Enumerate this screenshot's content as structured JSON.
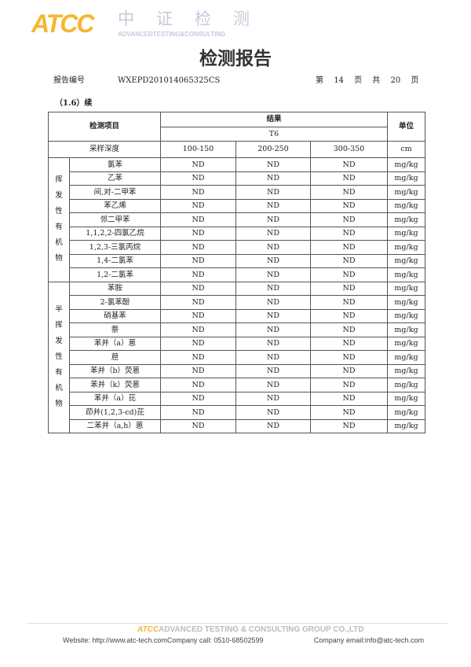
{
  "header": {
    "logo": "ATCC",
    "logo_cn": "中证检测",
    "logo_en": "ADVANCEDTESTING&CONSULTING",
    "title": "检测报告",
    "report_no_label": "报告编号",
    "report_no": "WXEPD201014065325CS",
    "page_prefix": "第",
    "page": "14",
    "page_mid": "页 共",
    "total": "20",
    "page_suffix": "页"
  },
  "section": "（1.6）续",
  "table": {
    "item_header": "检测项目",
    "result_header": "结果",
    "sample": "T6",
    "unit_header": "单位",
    "depth_label": "采样深度",
    "depths": [
      "100-150",
      "200-250",
      "300-350"
    ],
    "depth_unit": "cm",
    "groups": [
      {
        "label": "挥发性有机物",
        "rows": [
          {
            "name": "氯苯",
            "values": [
              "ND",
              "ND",
              "ND"
            ],
            "unit": "mg/kg"
          },
          {
            "name": "乙苯",
            "values": [
              "ND",
              "ND",
              "ND"
            ],
            "unit": "mg/kg"
          },
          {
            "name": "间,对-二甲苯",
            "values": [
              "ND",
              "ND",
              "ND"
            ],
            "unit": "mg/kg"
          },
          {
            "name": "苯乙烯",
            "values": [
              "ND",
              "ND",
              "ND"
            ],
            "unit": "mg/kg"
          },
          {
            "name": "邻二甲苯",
            "values": [
              "ND",
              "ND",
              "ND"
            ],
            "unit": "mg/kg"
          },
          {
            "name": "1,1,2,2-四氯乙烷",
            "values": [
              "ND",
              "ND",
              "ND"
            ],
            "unit": "mg/kg"
          },
          {
            "name": "1,2,3-三氯丙烷",
            "values": [
              "ND",
              "ND",
              "ND"
            ],
            "unit": "mg/kg"
          },
          {
            "name": "1,4-二氯苯",
            "values": [
              "ND",
              "ND",
              "ND"
            ],
            "unit": "mg/kg"
          },
          {
            "name": "1,2-二氯苯",
            "values": [
              "ND",
              "ND",
              "ND"
            ],
            "unit": "mg/kg"
          }
        ]
      },
      {
        "label": "半挥发性有机物",
        "rows": [
          {
            "name": "苯胺",
            "values": [
              "ND",
              "ND",
              "ND"
            ],
            "unit": "mg/kg"
          },
          {
            "name": "2-氯苯酚",
            "values": [
              "ND",
              "ND",
              "ND"
            ],
            "unit": "mg/kg"
          },
          {
            "name": "硝基苯",
            "values": [
              "ND",
              "ND",
              "ND"
            ],
            "unit": "mg/kg"
          },
          {
            "name": "萘",
            "values": [
              "ND",
              "ND",
              "ND"
            ],
            "unit": "mg/kg"
          },
          {
            "name": "苯并（a）蒽",
            "values": [
              "ND",
              "ND",
              "ND"
            ],
            "unit": "mg/kg"
          },
          {
            "name": "䓛",
            "values": [
              "ND",
              "ND",
              "ND"
            ],
            "unit": "mg/kg"
          },
          {
            "name": "苯并（b）荧蒽",
            "values": [
              "ND",
              "ND",
              "ND"
            ],
            "unit": "mg/kg"
          },
          {
            "name": "苯并（k）荧蒽",
            "values": [
              "ND",
              "ND",
              "ND"
            ],
            "unit": "mg/kg"
          },
          {
            "name": "苯并（a）芘",
            "values": [
              "ND",
              "ND",
              "ND"
            ],
            "unit": "mg/kg"
          },
          {
            "name": "茚并(1,2,3-cd)芘",
            "values": [
              "ND",
              "ND",
              "ND"
            ],
            "unit": "mg/kg"
          },
          {
            "name": "二苯并（a,h）蒽",
            "values": [
              "ND",
              "ND",
              "ND"
            ],
            "unit": "mg/kg"
          }
        ]
      }
    ]
  },
  "footer": {
    "logo": "ATCC",
    "company": "ADVANCED TESTING & CONSULTING GROUP CO.,LTD",
    "website": "Website: http://www.atc-tech.comCompany call: 0510-68502599",
    "email": "Company email:info@atc-tech.com"
  }
}
